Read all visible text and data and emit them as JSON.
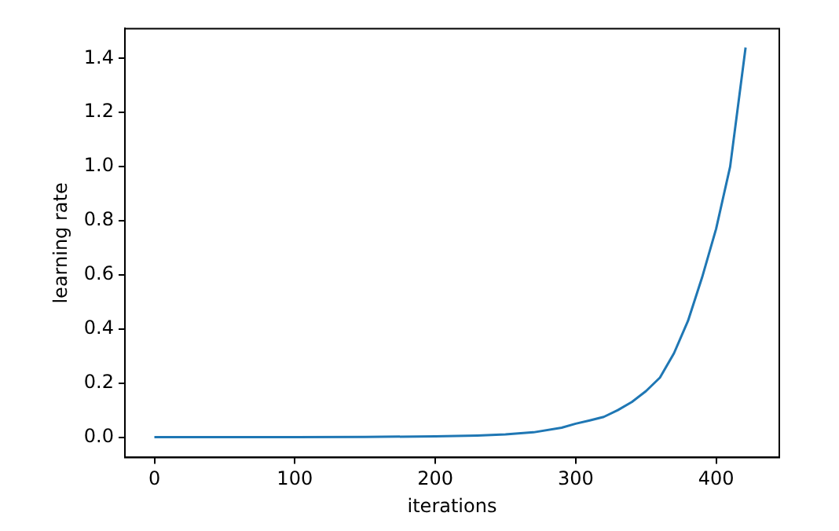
{
  "chart_data": {
    "type": "line",
    "xlabel": "iterations",
    "ylabel": "learning rate",
    "x": [
      0,
      100,
      150,
      200,
      230,
      250,
      270,
      290,
      300,
      310,
      320,
      330,
      340,
      350,
      360,
      370,
      380,
      390,
      400,
      410,
      421
    ],
    "series": [
      {
        "color": "#1f77b4",
        "values": [
          0,
          0,
          0.001,
          0.003,
          0.006,
          0.01,
          0.018,
          0.035,
          0.05,
          0.062,
          0.075,
          0.1,
          0.13,
          0.17,
          0.22,
          0.31,
          0.43,
          0.59,
          0.77,
          1.0,
          1.44
        ]
      }
    ],
    "xlim": [
      -21,
      445
    ],
    "xticks": [
      0,
      100,
      200,
      300,
      400
    ],
    "ylim": [
      -0.075,
      1.51
    ],
    "yticks": [
      {
        "value": 0,
        "label": "0.0"
      },
      {
        "value": 0.2,
        "label": "0.2"
      },
      {
        "value": 0.4,
        "label": "0.4"
      },
      {
        "value": 0.6,
        "label": "0.6"
      },
      {
        "value": 0.8,
        "label": "0.8"
      },
      {
        "value": 1,
        "label": "1.0"
      },
      {
        "value": 1.2,
        "label": "1.2"
      },
      {
        "value": 1.4,
        "label": "1.4"
      }
    ],
    "grid": false,
    "legend": false,
    "marker": "none",
    "line_style": "solid"
  }
}
